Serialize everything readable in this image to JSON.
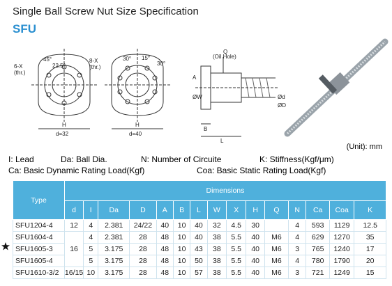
{
  "header": {
    "title": "Single Ball Screw Nut Size Specification",
    "code": "SFU"
  },
  "drawings": {
    "flange_6": {
      "holes": "6-X",
      "thread": "(thr.)",
      "angle_1": "45°",
      "angle_2": "22.5°",
      "height": "H",
      "diameter": "d=32"
    },
    "flange_8": {
      "holes": "8-X",
      "thread": "(thr.)",
      "angle_1": "30°",
      "angle_2": "15°",
      "angle_3": "30°",
      "height": "H",
      "diameter": "d=40"
    },
    "side_view": {
      "oil_hole": "Q",
      "oil_hole_note": "(Oil Hole)",
      "a": "A",
      "w": "ØW",
      "d_small": "Ød",
      "d_large": "ØD",
      "b": "B",
      "l": "L"
    }
  },
  "unit": "(Unit):  mm",
  "legend": [
    "I: Lead",
    "Da: Ball Dia.",
    "N: Number of Circuite",
    "K: Stiffness(Kgf/μm)",
    "Ca: Basic Dynamic Rating Load(Kgf)",
    "Coa: Basic Static Rating Load(Kgf)"
  ],
  "table": {
    "type_header": "Type",
    "group_header": "Dimensions",
    "columns": [
      "d",
      "I",
      "Da",
      "D",
      "A",
      "B",
      "L",
      "W",
      "X",
      "H",
      "Q",
      "N",
      "Ca",
      "Coa",
      "K"
    ],
    "rows": [
      {
        "type": "SFU1204-4",
        "d": "12",
        "cells": [
          "4",
          "2.381",
          "24/22",
          "40",
          "10",
          "40",
          "32",
          "4.5",
          "30",
          null,
          "4",
          "593",
          "1129",
          "12.5"
        ]
      },
      {
        "type": "SFU1604-4",
        "d": "16",
        "d_span": 3,
        "cells": [
          "4",
          "2.381",
          "28",
          "48",
          "10",
          "40",
          "38",
          "5.5",
          "40",
          "M6",
          "4",
          "629",
          "1270",
          "35"
        ]
      },
      {
        "type": "SFU1605-3",
        "cells": [
          "5",
          "3.175",
          "28",
          "48",
          "10",
          "43",
          "38",
          "5.5",
          "40",
          "M6",
          "3",
          "765",
          "1240",
          "17"
        ]
      },
      {
        "type": "SFU1605-4",
        "cells": [
          "5",
          "3.175",
          "28",
          "48",
          "10",
          "50",
          "38",
          "5.5",
          "40",
          "M6",
          "4",
          "780",
          "1790",
          "20"
        ]
      },
      {
        "type": "SFU1610-3/2",
        "d": "16/15",
        "cells": [
          "10",
          "3.175",
          "28",
          "48",
          "10",
          "57",
          "38",
          "5.5",
          "40",
          "M6",
          "3",
          "721",
          "1249",
          "15"
        ]
      }
    ]
  }
}
